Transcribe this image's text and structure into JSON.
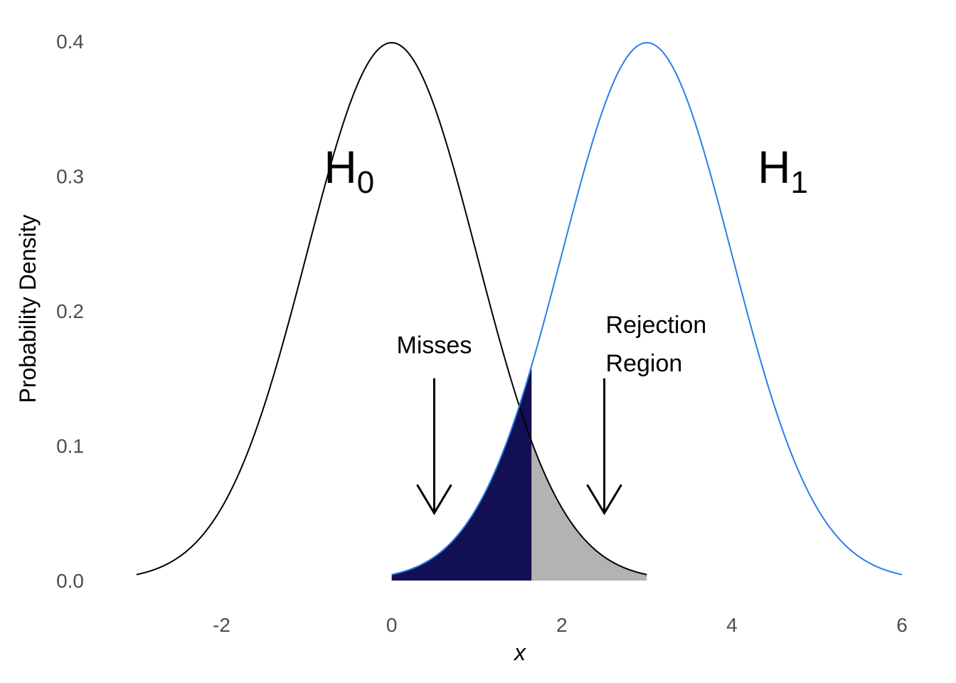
{
  "chart_data": {
    "type": "area",
    "xlabel": "x",
    "ylabel": "Probability Density",
    "xlim": [
      -3,
      6
    ],
    "ylim": [
      0,
      0.4
    ],
    "x_ticks": [
      {
        "value": -2,
        "label": "-2"
      },
      {
        "value": 0,
        "label": "0"
      },
      {
        "value": 2,
        "label": "2"
      },
      {
        "value": 4,
        "label": "4"
      },
      {
        "value": 6,
        "label": "6"
      }
    ],
    "y_ticks": [
      {
        "value": 0.0,
        "label": "0.0"
      },
      {
        "value": 0.1,
        "label": "0.1"
      },
      {
        "value": 0.2,
        "label": "0.2"
      },
      {
        "value": 0.3,
        "label": "0.3"
      },
      {
        "value": 0.4,
        "label": "0.4"
      }
    ],
    "grid": false,
    "critical_value": 1.645,
    "series": [
      {
        "kind": "normal_density",
        "mean": 0,
        "sd": 1,
        "x_range": [
          -3,
          3
        ],
        "color": "#000000"
      },
      {
        "kind": "normal_density",
        "mean": 3,
        "sd": 1,
        "x_range": [
          0,
          6
        ],
        "color": "#2a7ee8"
      }
    ],
    "shaded_regions": [
      {
        "curve": 1,
        "x_range": [
          0,
          1.645
        ],
        "color": "#130f55"
      },
      {
        "curve": 0,
        "x_range": [
          1.645,
          3
        ],
        "color": "#b3b3b3"
      }
    ],
    "hypothesis_labels": [
      {
        "main": "H",
        "sub": "0",
        "x": -0.5,
        "y": 0.295
      },
      {
        "main": "H",
        "sub": "1",
        "x": 4.6,
        "y": 0.295
      }
    ],
    "annotations": [
      {
        "lines": [
          "Misses"
        ],
        "x": 0.5,
        "y": 0.175,
        "arrow_from": 0.15,
        "arrow_to": 0.05
      },
      {
        "lines": [
          "Rejection",
          "Region"
        ],
        "x": 2.5,
        "y": 0.19,
        "arrow_from": 0.15,
        "arrow_to": 0.05
      }
    ]
  }
}
